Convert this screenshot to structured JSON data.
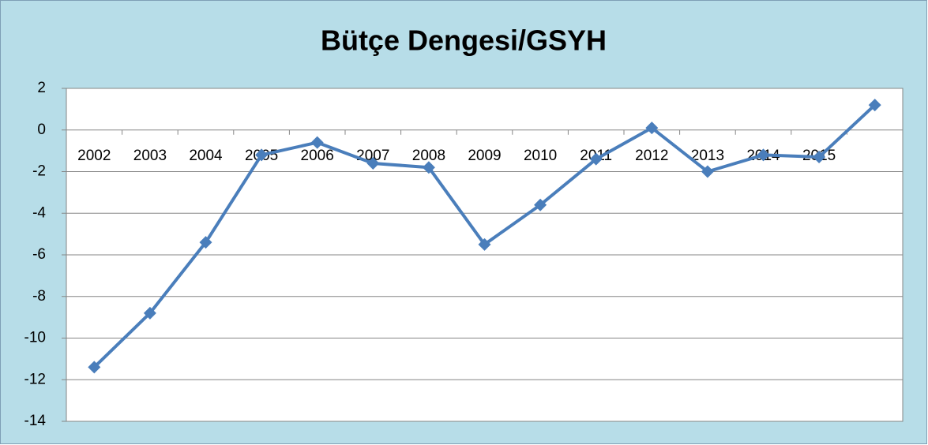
{
  "chart_data": {
    "type": "line",
    "title": "Bütçe Dengesi/GSYH",
    "categories": [
      "2002",
      "2003",
      "2004",
      "2005",
      "2006",
      "2007",
      "2008",
      "2009",
      "2010",
      "2011",
      "2012",
      "2013",
      "2014",
      "2015",
      null
    ],
    "series": [
      {
        "name": null,
        "color": "#4a7ebb",
        "values": [
          -11.4,
          -8.8,
          -5.4,
          -1.2,
          -0.6,
          -1.6,
          -1.8,
          -5.5,
          -3.6,
          -1.4,
          0.1,
          -2.0,
          -1.2,
          -1.3,
          1.2
        ]
      }
    ],
    "ylim": [
      -14,
      2
    ],
    "yticks": [
      -14,
      -12,
      -10,
      -8,
      -6,
      -4,
      -2,
      0,
      2
    ],
    "grid": true
  }
}
